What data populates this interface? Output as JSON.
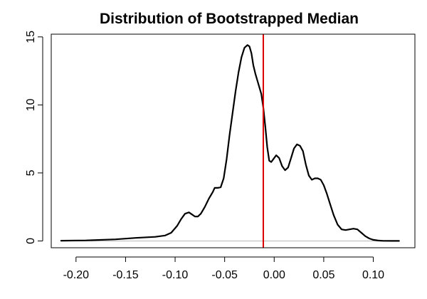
{
  "chart_data": {
    "type": "line",
    "title": "Distribution of Bootstrapped Median",
    "xlabel": "",
    "ylabel": "",
    "xlim": [
      -0.225,
      0.142
    ],
    "ylim": [
      -0.5,
      15.2
    ],
    "xticks": [
      -0.2,
      -0.15,
      -0.1,
      -0.05,
      0.0,
      0.05,
      0.1
    ],
    "xtick_labels": [
      "-0.20",
      "-0.15",
      "-0.10",
      "-0.05",
      "0.00",
      "0.05",
      "0.10"
    ],
    "yticks": [
      0,
      5,
      10,
      15
    ],
    "ytick_labels": [
      "0",
      "5",
      "10",
      "15"
    ],
    "baseline": {
      "y": 0,
      "color": "#b8b8b8"
    },
    "vline": {
      "x": -0.011,
      "color": "#dd0000"
    },
    "grid": false,
    "series": [
      {
        "color": "#000000",
        "x": [
          -0.215,
          -0.19,
          -0.16,
          -0.14,
          -0.12,
          -0.11,
          -0.104,
          -0.098,
          -0.094,
          -0.09,
          -0.086,
          -0.083,
          -0.08,
          -0.077,
          -0.074,
          -0.07,
          -0.066,
          -0.062,
          -0.06,
          -0.057,
          -0.054,
          -0.051,
          -0.048,
          -0.045,
          -0.042,
          -0.039,
          -0.036,
          -0.033,
          -0.03,
          -0.027,
          -0.025,
          -0.023,
          -0.021,
          -0.019,
          -0.017,
          -0.015,
          -0.013,
          -0.011,
          -0.009,
          -0.007,
          -0.005,
          -0.003,
          -0.001,
          0.002,
          0.005,
          0.008,
          0.011,
          0.014,
          0.017,
          0.02,
          0.023,
          0.026,
          0.029,
          0.032,
          0.035,
          0.038,
          0.041,
          0.044,
          0.047,
          0.05,
          0.053,
          0.056,
          0.06,
          0.064,
          0.068,
          0.072,
          0.076,
          0.08,
          0.084,
          0.088,
          0.092,
          0.096,
          0.1,
          0.105,
          0.11,
          0.12,
          0.126
        ],
        "y": [
          0.02,
          0.04,
          0.12,
          0.22,
          0.3,
          0.4,
          0.6,
          1.1,
          1.6,
          2.0,
          2.1,
          1.95,
          1.8,
          1.8,
          2.0,
          2.5,
          3.1,
          3.6,
          3.9,
          3.9,
          3.95,
          4.6,
          6.0,
          7.8,
          9.4,
          11.0,
          12.4,
          13.5,
          14.2,
          14.4,
          14.3,
          13.8,
          12.9,
          12.3,
          11.8,
          11.3,
          10.8,
          9.8,
          8.4,
          6.9,
          5.9,
          5.8,
          6.0,
          6.3,
          6.1,
          5.5,
          5.2,
          5.4,
          6.1,
          6.8,
          7.1,
          7.0,
          6.6,
          5.6,
          4.8,
          4.5,
          4.6,
          4.6,
          4.5,
          4.1,
          3.5,
          2.8,
          1.9,
          1.2,
          0.85,
          0.8,
          0.85,
          0.9,
          0.85,
          0.6,
          0.35,
          0.18,
          0.08,
          0.03,
          0.01,
          0.0,
          0.0
        ]
      }
    ]
  }
}
